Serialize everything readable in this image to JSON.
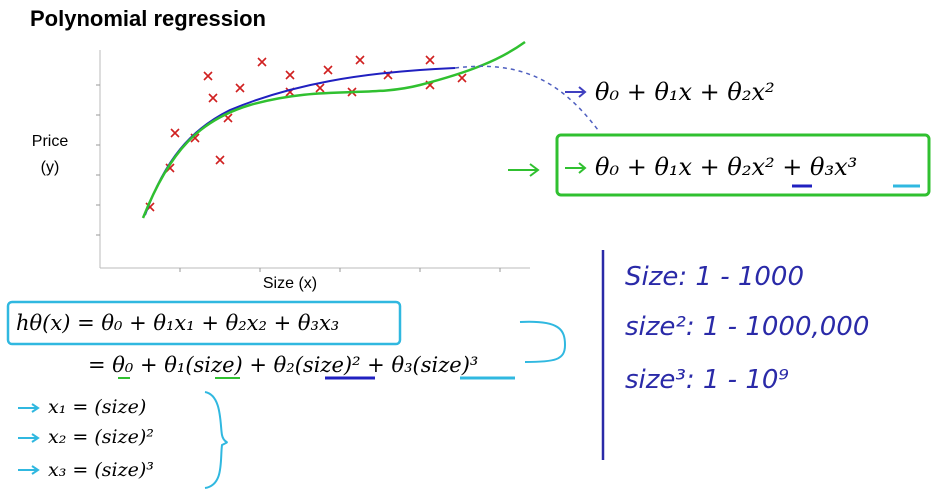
{
  "slide": {
    "title": "Polynomial regression",
    "plot": {
      "y_label_1": "Price",
      "y_label_2": "(y)",
      "x_label": "Size (x)"
    },
    "quadratic_model": "θ₀ + θ₁x + θ₂x²",
    "cubic_model": "θ₀ + θ₁x + θ₂x² + θ₃x³",
    "hypothesis": "hθ(x) = θ₀ + θ₁x₁ + θ₂x₂ + θ₃x₃",
    "hypothesis_expanded": "= θ₀ + θ₁(size) + θ₂(size)² + θ₃(size)³",
    "features": [
      "x₁ = (size)",
      "x₂ = (size)²",
      "x₃ = (size)³"
    ],
    "ranges": [
      "Size:  1 - 1000",
      "size²:  1 - 1000,000",
      "size³:  1 - 10⁹"
    ]
  }
}
